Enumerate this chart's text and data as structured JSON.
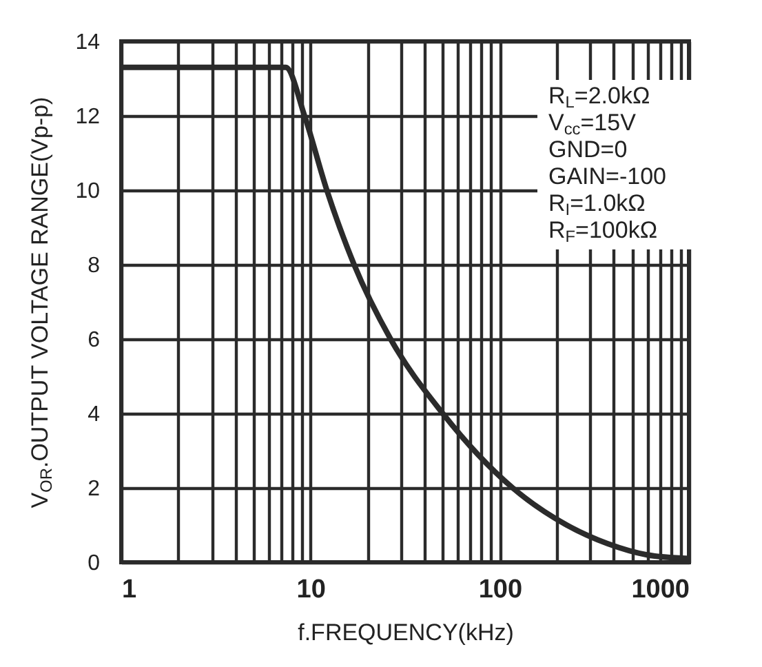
{
  "chart_data": {
    "type": "line",
    "xlabel": "f.FREQUENCY(kHz)",
    "ylabel": "V$_{OR}$.OUTPUT VOLTAGE RANGE(Vp-p)",
    "x": [
      1,
      7.4,
      9.3,
      12.2,
      17,
      26.5,
      50,
      117,
      226,
      372,
      600,
      1000
    ],
    "series": [
      {
        "color": "#2b2b2b",
        "values": [
          13.3,
          13.3,
          12,
          10,
          8,
          6,
          4,
          2,
          1,
          0.5,
          0.2,
          0.1
        ]
      }
    ],
    "log": "x",
    "xlim": [
      1,
      1000
    ],
    "ylim": [
      0,
      14
    ],
    "yticks": [
      0,
      2,
      4,
      6,
      8,
      10,
      12,
      14
    ],
    "xticks": [
      1,
      {
        "value": 2,
        "label": null
      },
      {
        "value": 3,
        "label": null
      },
      {
        "value": 4,
        "label": null
      },
      {
        "value": 5,
        "label": null
      },
      {
        "value": 6,
        "label": null
      },
      {
        "value": 7,
        "label": null
      },
      {
        "value": 8,
        "label": null
      },
      {
        "value": 9,
        "label": null
      },
      10,
      {
        "value": 20,
        "label": null
      },
      {
        "value": 30,
        "label": null
      },
      {
        "value": 40,
        "label": null
      },
      {
        "value": 50,
        "label": null
      },
      {
        "value": 60,
        "label": null
      },
      {
        "value": 70,
        "label": null
      },
      {
        "value": 80,
        "label": null
      },
      {
        "value": 90,
        "label": null
      },
      100,
      {
        "value": 200,
        "label": null
      },
      {
        "value": 300,
        "label": null
      },
      {
        "value": 400,
        "label": null
      },
      {
        "value": 500,
        "label": null
      },
      {
        "value": 600,
        "label": null
      },
      {
        "value": 700,
        "label": null
      },
      {
        "value": 800,
        "label": null
      },
      {
        "value": 900,
        "label": null
      },
      1000
    ],
    "grid": true,
    "marker": "none",
    "line_style": "solid",
    "annotations": [
      "R$_{L}$=2.0kΩ",
      "V$_{cc}$=15V",
      "GND=0",
      "GAIN=-100",
      "R$_{I}$=1.0kΩ",
      "R$_{F}$=100kΩ"
    ]
  }
}
